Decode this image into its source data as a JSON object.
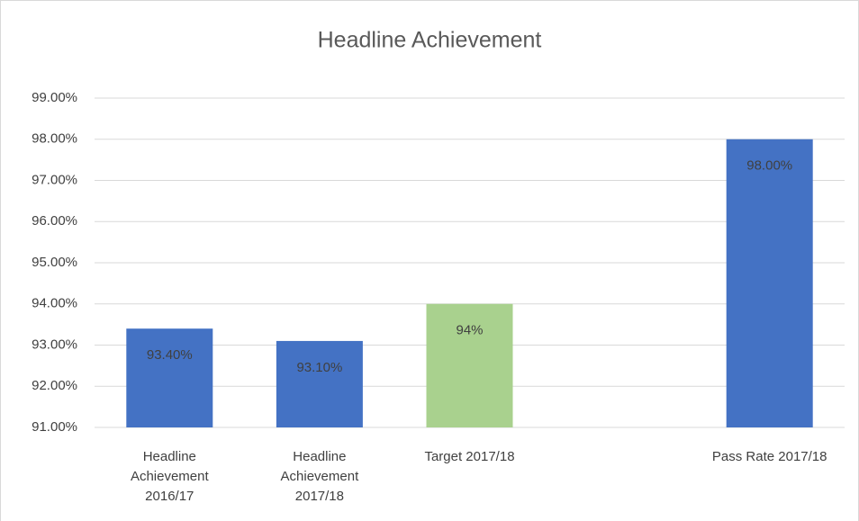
{
  "chart_data": {
    "type": "bar",
    "title": "Headline Achievement",
    "categories": [
      "Headline Achievement 2016/17",
      "Headline Achievement 2017/18",
      "Target 2017/18",
      null,
      "Pass Rate 2017/18"
    ],
    "values": [
      93.4,
      93.1,
      94,
      null,
      98
    ],
    "value_labels": [
      "93.40%",
      "93.10%",
      "94%",
      null,
      "98.00%"
    ],
    "colors": [
      "#4472c4",
      "#4472c4",
      "#a9d18e",
      null,
      "#4472c4"
    ],
    "ylim": [
      91,
      99
    ],
    "yticks": [
      {
        "value": 91,
        "label": "91.00%"
      },
      {
        "value": 92,
        "label": "92.00%"
      },
      {
        "value": 93,
        "label": "93.00%"
      },
      {
        "value": 94,
        "label": "94.00%"
      },
      {
        "value": 95,
        "label": "95.00%"
      },
      {
        "value": 96,
        "label": "96.00%"
      },
      {
        "value": 97,
        "label": "97.00%"
      },
      {
        "value": 98,
        "label": "98.00%"
      },
      {
        "value": 99,
        "label": "99.00%"
      }
    ],
    "grid": true
  }
}
